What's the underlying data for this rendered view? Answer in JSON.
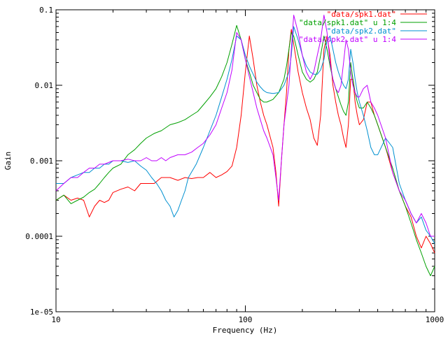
{
  "chart_data": {
    "type": "line",
    "xlabel": "Frequency (Hz)",
    "ylabel": "Gain",
    "xscale": "log",
    "yscale": "log",
    "xlim": [
      10,
      1000
    ],
    "ylim": [
      1e-05,
      0.1
    ],
    "x_ticks": [
      {
        "value": 10,
        "label": "10"
      },
      {
        "value": 100,
        "label": "100"
      },
      {
        "value": 1000,
        "label": "1000"
      }
    ],
    "y_ticks": [
      {
        "value": 0.1,
        "label": "0.1"
      },
      {
        "value": 0.01,
        "label": "0.01"
      },
      {
        "value": 0.001,
        "label": "0.001"
      },
      {
        "value": 0.0001,
        "label": "0.0001"
      },
      {
        "value": 1e-05,
        "label": "1e-05"
      }
    ],
    "grid": false,
    "legend_position": "top-right",
    "series": [
      {
        "name": "\"data/spk1.dat\"",
        "color": "#ff0000",
        "x": [
          10,
          11,
          12,
          13,
          14,
          15,
          16,
          17,
          18,
          19,
          20,
          22,
          24,
          26,
          28,
          30,
          33,
          36,
          40,
          44,
          48,
          52,
          56,
          60,
          65,
          70,
          75,
          80,
          85,
          90,
          95,
          100,
          105,
          110,
          115,
          120,
          125,
          130,
          140,
          145,
          150,
          155,
          160,
          165,
          170,
          175,
          180,
          190,
          200,
          210,
          220,
          230,
          240,
          250,
          260,
          270,
          280,
          290,
          300,
          310,
          320,
          330,
          340,
          350,
          360,
          370,
          380,
          390,
          400,
          420,
          440,
          460,
          480,
          500,
          550,
          600,
          650,
          700,
          750,
          800,
          850,
          900,
          950,
          1000
        ],
        "y": [
          0.0003,
          0.00035,
          0.0003,
          0.00032,
          0.0003,
          0.00018,
          0.00025,
          0.0003,
          0.00028,
          0.0003,
          0.00038,
          0.00042,
          0.00045,
          0.0004,
          0.0005,
          0.0005,
          0.0005,
          0.0006,
          0.0006,
          0.00055,
          0.0006,
          0.00058,
          0.0006,
          0.0006,
          0.0007,
          0.0006,
          0.00065,
          0.00072,
          0.00085,
          0.0015,
          0.004,
          0.015,
          0.045,
          0.022,
          0.01,
          0.006,
          0.004,
          0.003,
          0.0015,
          0.0007,
          0.00025,
          0.001,
          0.003,
          0.008,
          0.03,
          0.055,
          0.035,
          0.015,
          0.008,
          0.005,
          0.0035,
          0.002,
          0.0016,
          0.004,
          0.03,
          0.045,
          0.025,
          0.01,
          0.006,
          0.004,
          0.003,
          0.002,
          0.0015,
          0.003,
          0.012,
          0.012,
          0.006,
          0.004,
          0.003,
          0.0035,
          0.006,
          0.006,
          0.004,
          0.003,
          0.0015,
          0.0007,
          0.0004,
          0.00025,
          0.00018,
          0.0001,
          7e-05,
          0.0001,
          8e-05,
          6e-05
        ]
      },
      {
        "name": "\"data/spk1.dat\" u 1:4",
        "color": "#00a000",
        "x": [
          10,
          11,
          12,
          13,
          14,
          15,
          16,
          17,
          18,
          19,
          20,
          22,
          24,
          26,
          28,
          30,
          33,
          36,
          40,
          44,
          48,
          52,
          56,
          60,
          65,
          70,
          75,
          80,
          85,
          90,
          95,
          100,
          105,
          110,
          115,
          120,
          125,
          130,
          140,
          150,
          160,
          165,
          170,
          175,
          180,
          190,
          200,
          210,
          220,
          230,
          240,
          250,
          260,
          270,
          280,
          290,
          300,
          310,
          320,
          330,
          340,
          350,
          360,
          370,
          380,
          390,
          400,
          420,
          440,
          460,
          480,
          500,
          550,
          600,
          650,
          700,
          750,
          800,
          850,
          900,
          950,
          1000
        ],
        "y": [
          0.0003,
          0.00035,
          0.00027,
          0.0003,
          0.00033,
          0.00038,
          0.00042,
          0.0005,
          0.0006,
          0.0007,
          0.0008,
          0.0009,
          0.0012,
          0.0014,
          0.0017,
          0.002,
          0.0023,
          0.0025,
          0.003,
          0.0032,
          0.0035,
          0.004,
          0.0045,
          0.0055,
          0.007,
          0.009,
          0.013,
          0.02,
          0.035,
          0.062,
          0.04,
          0.022,
          0.015,
          0.01,
          0.008,
          0.0065,
          0.006,
          0.006,
          0.0065,
          0.008,
          0.012,
          0.018,
          0.03,
          0.05,
          0.045,
          0.025,
          0.015,
          0.012,
          0.011,
          0.012,
          0.015,
          0.025,
          0.045,
          0.03,
          0.018,
          0.012,
          0.009,
          0.007,
          0.0055,
          0.0045,
          0.004,
          0.006,
          0.02,
          0.012,
          0.008,
          0.006,
          0.005,
          0.005,
          0.006,
          0.005,
          0.004,
          0.003,
          0.0015,
          0.0008,
          0.0004,
          0.00025,
          0.00015,
          9e-05,
          6e-05,
          4e-05,
          3e-05,
          4e-05
        ]
      },
      {
        "name": "\"data/spk2.dat\"",
        "color": "#0090d0",
        "x": [
          10,
          11,
          12,
          13,
          14,
          15,
          16,
          17,
          18,
          19,
          20,
          22,
          24,
          26,
          28,
          30,
          32,
          34,
          36,
          38,
          40,
          42,
          44,
          46,
          48,
          50,
          55,
          60,
          65,
          70,
          75,
          80,
          85,
          90,
          95,
          100,
          105,
          110,
          115,
          120,
          125,
          130,
          140,
          150,
          160,
          170,
          175,
          180,
          190,
          200,
          210,
          220,
          230,
          240,
          250,
          260,
          270,
          280,
          290,
          300,
          310,
          320,
          330,
          340,
          350,
          360,
          370,
          380,
          390,
          400,
          420,
          440,
          460,
          480,
          500,
          550,
          600,
          650,
          700,
          750,
          800,
          850,
          900,
          950,
          1000
        ],
        "y": [
          0.0005,
          0.0005,
          0.0006,
          0.00065,
          0.0007,
          0.0007,
          0.0008,
          0.0008,
          0.0009,
          0.0009,
          0.001,
          0.001,
          0.00095,
          0.001,
          0.00085,
          0.00075,
          0.0006,
          0.0005,
          0.0004,
          0.0003,
          0.00025,
          0.00018,
          0.00022,
          0.0003,
          0.0004,
          0.0006,
          0.0009,
          0.0015,
          0.0025,
          0.004,
          0.007,
          0.012,
          0.022,
          0.045,
          0.04,
          0.025,
          0.018,
          0.014,
          0.011,
          0.0095,
          0.0085,
          0.008,
          0.0078,
          0.008,
          0.01,
          0.015,
          0.025,
          0.06,
          0.04,
          0.025,
          0.018,
          0.015,
          0.014,
          0.014,
          0.016,
          0.022,
          0.04,
          0.045,
          0.03,
          0.02,
          0.015,
          0.012,
          0.01,
          0.009,
          0.012,
          0.03,
          0.02,
          0.012,
          0.008,
          0.006,
          0.004,
          0.0025,
          0.0015,
          0.0012,
          0.0012,
          0.002,
          0.0015,
          0.0005,
          0.0003,
          0.0002,
          0.00015,
          0.00018,
          0.00012,
          0.0001,
          8e-05
        ]
      },
      {
        "name": "\"data/spk2.dat\" u 1:4",
        "color": "#c000ff",
        "x": [
          10,
          11,
          12,
          13,
          14,
          15,
          16,
          17,
          18,
          19,
          20,
          22,
          24,
          26,
          28,
          30,
          32,
          34,
          36,
          38,
          40,
          44,
          48,
          52,
          56,
          60,
          65,
          70,
          75,
          80,
          85,
          90,
          95,
          100,
          105,
          110,
          115,
          120,
          125,
          130,
          140,
          145,
          150,
          155,
          160,
          170,
          175,
          180,
          190,
          200,
          210,
          220,
          230,
          240,
          250,
          260,
          270,
          280,
          290,
          300,
          310,
          320,
          330,
          340,
          350,
          360,
          370,
          380,
          390,
          400,
          420,
          440,
          460,
          480,
          500,
          550,
          600,
          650,
          700,
          750,
          800,
          850,
          900,
          950,
          1000
        ],
        "y": [
          0.0004,
          0.0005,
          0.0006,
          0.0006,
          0.0007,
          0.0008,
          0.0008,
          0.0009,
          0.0009,
          0.00095,
          0.001,
          0.001,
          0.00105,
          0.001,
          0.001,
          0.0011,
          0.001,
          0.001,
          0.0011,
          0.001,
          0.0011,
          0.0012,
          0.0012,
          0.0013,
          0.0015,
          0.0017,
          0.0022,
          0.003,
          0.005,
          0.008,
          0.016,
          0.05,
          0.04,
          0.022,
          0.013,
          0.008,
          0.005,
          0.0035,
          0.0025,
          0.002,
          0.0012,
          0.0006,
          0.0003,
          0.001,
          0.003,
          0.01,
          0.03,
          0.085,
          0.05,
          0.025,
          0.015,
          0.012,
          0.015,
          0.025,
          0.04,
          0.085,
          0.05,
          0.02,
          0.012,
          0.009,
          0.008,
          0.01,
          0.02,
          0.04,
          0.03,
          0.015,
          0.01,
          0.008,
          0.007,
          0.007,
          0.009,
          0.01,
          0.006,
          0.005,
          0.004,
          0.002,
          0.0007,
          0.0004,
          0.0003,
          0.0002,
          0.00015,
          0.0002,
          0.00015,
          0.0001,
          0.0001
        ]
      }
    ]
  }
}
